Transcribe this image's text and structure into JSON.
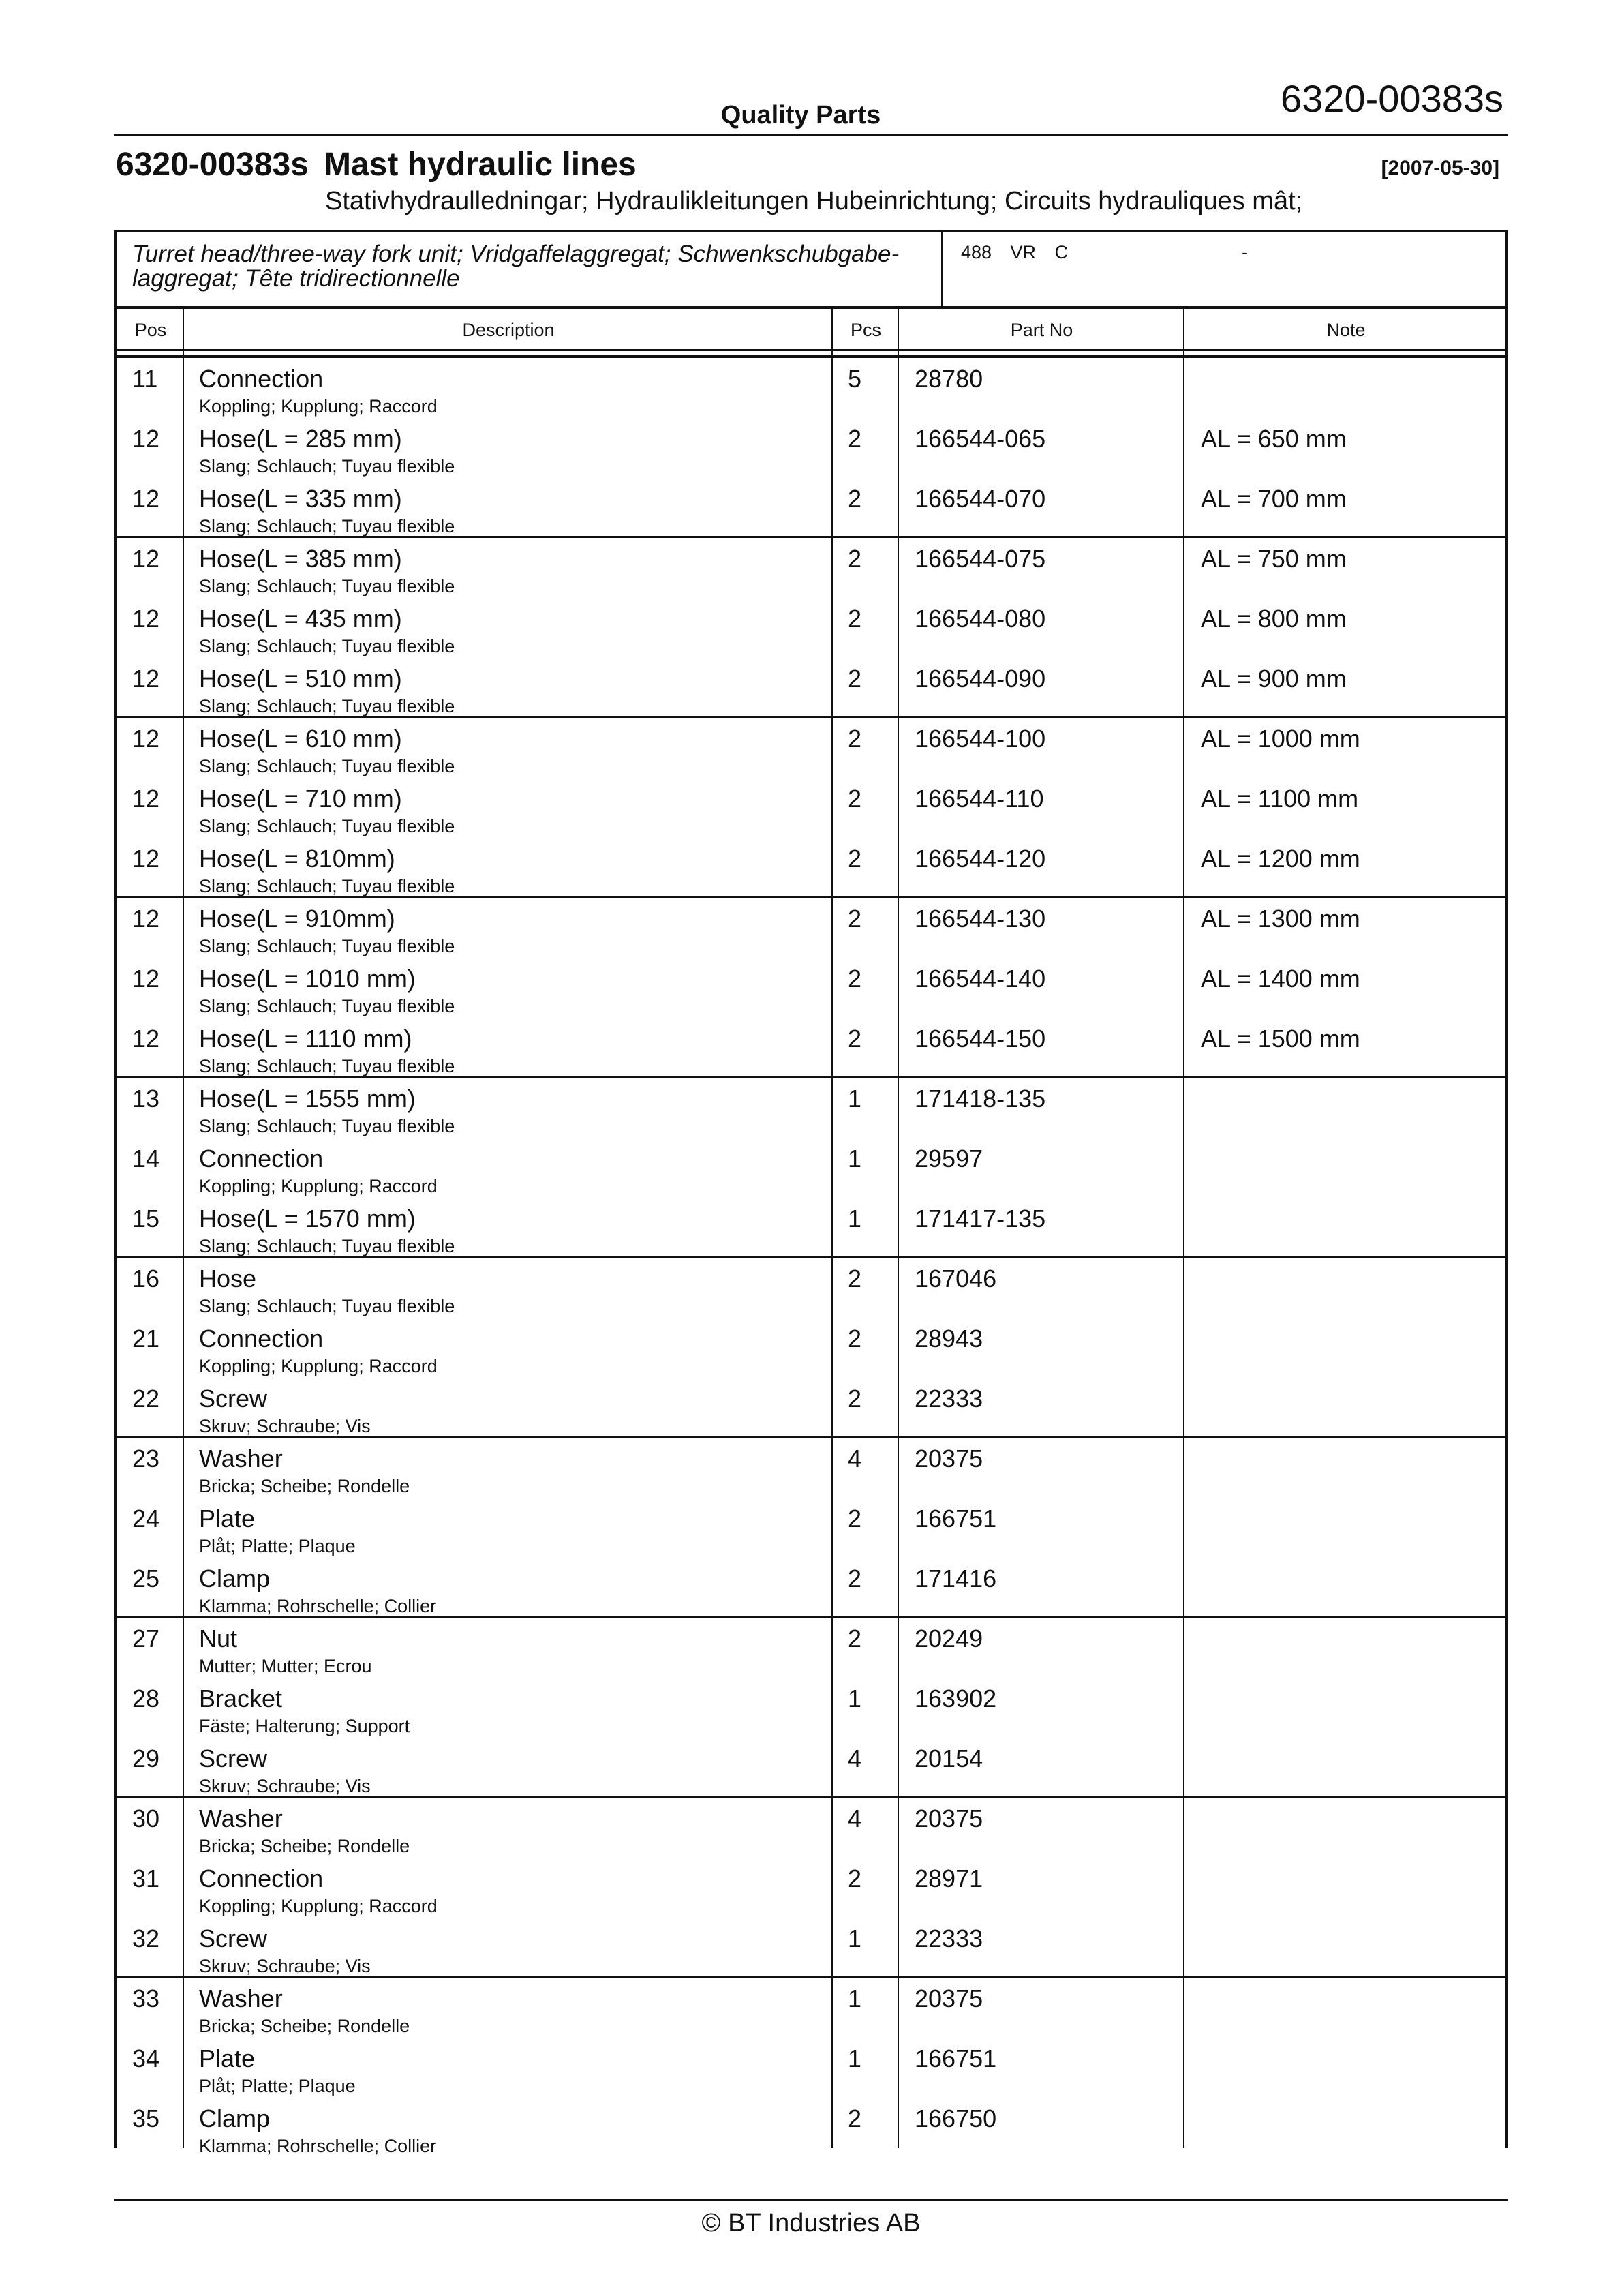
{
  "header": {
    "doc_code": "6320-00383s",
    "center_title": "Quality Parts"
  },
  "title": {
    "code": "6320-00383s",
    "name": "Mast hydraulic lines",
    "date": "[2007-05-30]",
    "subtitle": "Stativhydraulledningar; Hydraulikleitungen Hubeinrichtung; Circuits hydrauliques mât;"
  },
  "info": {
    "description": "Turret head/three-way fork unit; Vridgaffelaggregat; Schwenkschubgabe-laggregat; Tête tridirectionnelle",
    "code": "488 VR C",
    "dash": "-"
  },
  "columns": [
    "Pos",
    "Description",
    "Pcs",
    "Part No",
    "Note"
  ],
  "rows": [
    {
      "pos": "11",
      "desc": "Connection",
      "sub": "Koppling; Kupplung; Raccord",
      "pcs": "5",
      "part": "28780",
      "note": ""
    },
    {
      "pos": "12",
      "desc": "Hose(L = 285 mm)",
      "sub": "Slang; Schlauch; Tuyau flexible",
      "pcs": "2",
      "part": "166544-065",
      "note": "AL = 650 mm"
    },
    {
      "pos": "12",
      "desc": "Hose(L = 335 mm)",
      "sub": "Slang; Schlauch; Tuyau flexible",
      "pcs": "2",
      "part": "166544-070",
      "note": "AL = 700 mm"
    },
    {
      "pos": "12",
      "desc": "Hose(L = 385 mm)",
      "sub": "Slang; Schlauch; Tuyau flexible",
      "pcs": "2",
      "part": "166544-075",
      "note": "AL = 750 mm"
    },
    {
      "pos": "12",
      "desc": "Hose(L = 435 mm)",
      "sub": "Slang; Schlauch; Tuyau flexible",
      "pcs": "2",
      "part": "166544-080",
      "note": "AL = 800 mm"
    },
    {
      "pos": "12",
      "desc": "Hose(L = 510 mm)",
      "sub": "Slang; Schlauch; Tuyau flexible",
      "pcs": "2",
      "part": "166544-090",
      "note": "AL = 900 mm"
    },
    {
      "pos": "12",
      "desc": "Hose(L = 610 mm)",
      "sub": "Slang; Schlauch; Tuyau flexible",
      "pcs": "2",
      "part": "166544-100",
      "note": "AL = 1000 mm"
    },
    {
      "pos": "12",
      "desc": "Hose(L = 710 mm)",
      "sub": "Slang; Schlauch; Tuyau flexible",
      "pcs": "2",
      "part": "166544-110",
      "note": "AL = 1100 mm"
    },
    {
      "pos": "12",
      "desc": "Hose(L = 810mm)",
      "sub": "Slang; Schlauch; Tuyau flexible",
      "pcs": "2",
      "part": "166544-120",
      "note": "AL = 1200 mm"
    },
    {
      "pos": "12",
      "desc": "Hose(L = 910mm)",
      "sub": "Slang; Schlauch; Tuyau flexible",
      "pcs": "2",
      "part": "166544-130",
      "note": "AL = 1300 mm"
    },
    {
      "pos": "12",
      "desc": "Hose(L = 1010 mm)",
      "sub": "Slang; Schlauch; Tuyau flexible",
      "pcs": "2",
      "part": "166544-140",
      "note": "AL = 1400 mm"
    },
    {
      "pos": "12",
      "desc": "Hose(L = 1110 mm)",
      "sub": "Slang; Schlauch; Tuyau flexible",
      "pcs": "2",
      "part": "166544-150",
      "note": "AL = 1500 mm"
    },
    {
      "pos": "13",
      "desc": "Hose(L = 1555 mm)",
      "sub": "Slang; Schlauch; Tuyau flexible",
      "pcs": "1",
      "part": "171418-135",
      "note": ""
    },
    {
      "pos": "14",
      "desc": "Connection",
      "sub": "Koppling; Kupplung; Raccord",
      "pcs": "1",
      "part": "29597",
      "note": ""
    },
    {
      "pos": "15",
      "desc": "Hose(L = 1570 mm)",
      "sub": "Slang; Schlauch; Tuyau flexible",
      "pcs": "1",
      "part": "171417-135",
      "note": ""
    },
    {
      "pos": "16",
      "desc": "Hose",
      "sub": "Slang; Schlauch; Tuyau flexible",
      "pcs": "2",
      "part": "167046",
      "note": ""
    },
    {
      "pos": "21",
      "desc": "Connection",
      "sub": "Koppling; Kupplung; Raccord",
      "pcs": "2",
      "part": "28943",
      "note": ""
    },
    {
      "pos": "22",
      "desc": "Screw",
      "sub": "Skruv; Schraube; Vis",
      "pcs": "2",
      "part": "22333",
      "note": ""
    },
    {
      "pos": "23",
      "desc": "Washer",
      "sub": "Bricka; Scheibe; Rondelle",
      "pcs": "4",
      "part": "20375",
      "note": ""
    },
    {
      "pos": "24",
      "desc": "Plate",
      "sub": "Plåt; Platte; Plaque",
      "pcs": "2",
      "part": "166751",
      "note": ""
    },
    {
      "pos": "25",
      "desc": "Clamp",
      "sub": "Klamma; Rohrschelle; Collier",
      "pcs": "2",
      "part": "171416",
      "note": ""
    },
    {
      "pos": "27",
      "desc": "Nut",
      "sub": "Mutter; Mutter; Ecrou",
      "pcs": "2",
      "part": "20249",
      "note": ""
    },
    {
      "pos": "28",
      "desc": "Bracket",
      "sub": "Fäste; Halterung; Support",
      "pcs": "1",
      "part": "163902",
      "note": ""
    },
    {
      "pos": "29",
      "desc": "Screw",
      "sub": "Skruv; Schraube; Vis",
      "pcs": "4",
      "part": "20154",
      "note": ""
    },
    {
      "pos": "30",
      "desc": "Washer",
      "sub": "Bricka; Scheibe; Rondelle",
      "pcs": "4",
      "part": "20375",
      "note": ""
    },
    {
      "pos": "31",
      "desc": "Connection",
      "sub": "Koppling; Kupplung; Raccord",
      "pcs": "2",
      "part": "28971",
      "note": ""
    },
    {
      "pos": "32",
      "desc": "Screw",
      "sub": "Skruv; Schraube; Vis",
      "pcs": "1",
      "part": "22333",
      "note": ""
    },
    {
      "pos": "33",
      "desc": "Washer",
      "sub": "Bricka; Scheibe; Rondelle",
      "pcs": "1",
      "part": "20375",
      "note": ""
    },
    {
      "pos": "34",
      "desc": "Plate",
      "sub": "Plåt; Platte; Plaque",
      "pcs": "1",
      "part": "166751",
      "note": ""
    },
    {
      "pos": "35",
      "desc": "Clamp",
      "sub": "Klamma; Rohrschelle; Collier",
      "pcs": "2",
      "part": "166750",
      "note": ""
    }
  ],
  "footer": "© BT Industries AB"
}
